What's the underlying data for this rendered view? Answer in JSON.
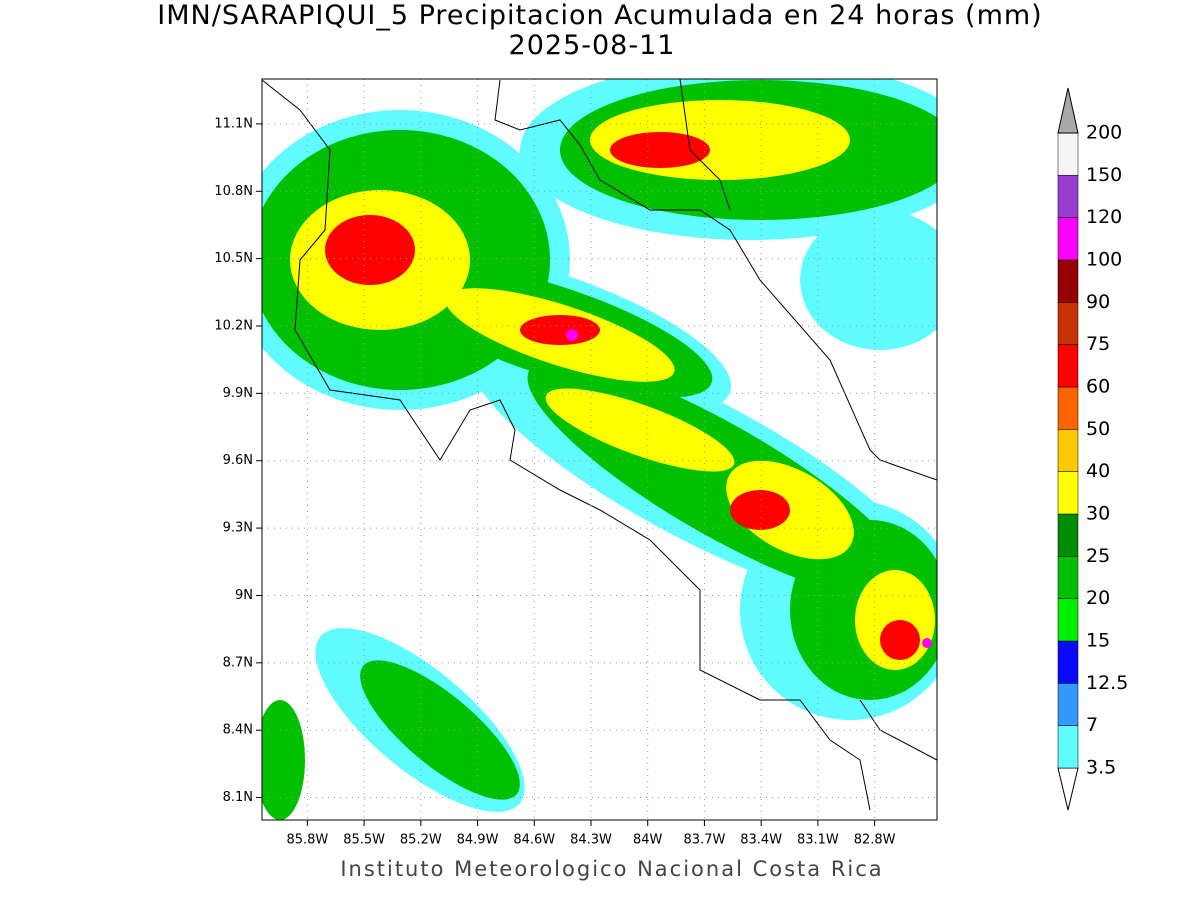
{
  "title": "IMN/SARAPIQUI_5 Precipitacion Acumulada en 24 horas (mm)",
  "subtitle": "2025-08-11",
  "footer": "Instituto Meteorologico Nacional Costa Rica",
  "map": {
    "xlim": [
      -86.04,
      -82.47
    ],
    "ylim": [
      8.0,
      11.3
    ],
    "grid": true,
    "xticks": [
      {
        "value": -85.8,
        "label": "85.8W"
      },
      {
        "value": -85.5,
        "label": "85.5W"
      },
      {
        "value": -85.2,
        "label": "85.2W"
      },
      {
        "value": -84.9,
        "label": "84.9W"
      },
      {
        "value": -84.6,
        "label": "84.6W"
      },
      {
        "value": -84.3,
        "label": "84.3W"
      },
      {
        "value": -84.0,
        "label": "84W"
      },
      {
        "value": -83.7,
        "label": "83.7W"
      },
      {
        "value": -83.4,
        "label": "83.4W"
      },
      {
        "value": -83.1,
        "label": "83.1W"
      },
      {
        "value": -82.8,
        "label": "82.8W"
      }
    ],
    "yticks": [
      {
        "value": 8.1,
        "label": "8.1N"
      },
      {
        "value": 8.4,
        "label": "8.4N"
      },
      {
        "value": 8.7,
        "label": "8.7N"
      },
      {
        "value": 9.0,
        "label": "9N"
      },
      {
        "value": 9.3,
        "label": "9.3N"
      },
      {
        "value": 9.6,
        "label": "9.6N"
      },
      {
        "value": 9.9,
        "label": "9.9N"
      },
      {
        "value": 10.2,
        "label": "10.2N"
      },
      {
        "value": 10.5,
        "label": "10.5N"
      },
      {
        "value": 10.8,
        "label": "10.8N"
      },
      {
        "value": 11.1,
        "label": "11.1N"
      }
    ]
  },
  "colorbar": {
    "levels": [
      3.5,
      7,
      12.5,
      15,
      20,
      25,
      30,
      40,
      50,
      60,
      75,
      90,
      100,
      120,
      150,
      200
    ],
    "colors": [
      "#ffffff",
      "#5ffbff",
      "#3399ff",
      "#0a0aff",
      "#00f000",
      "#00c000",
      "#008c00",
      "#ffff00",
      "#ffc800",
      "#ff6400",
      "#ff0000",
      "#c83200",
      "#960000",
      "#ff00ff",
      "#9a3ecf",
      "#f4f4f4",
      "#a9a9a9"
    ]
  }
}
